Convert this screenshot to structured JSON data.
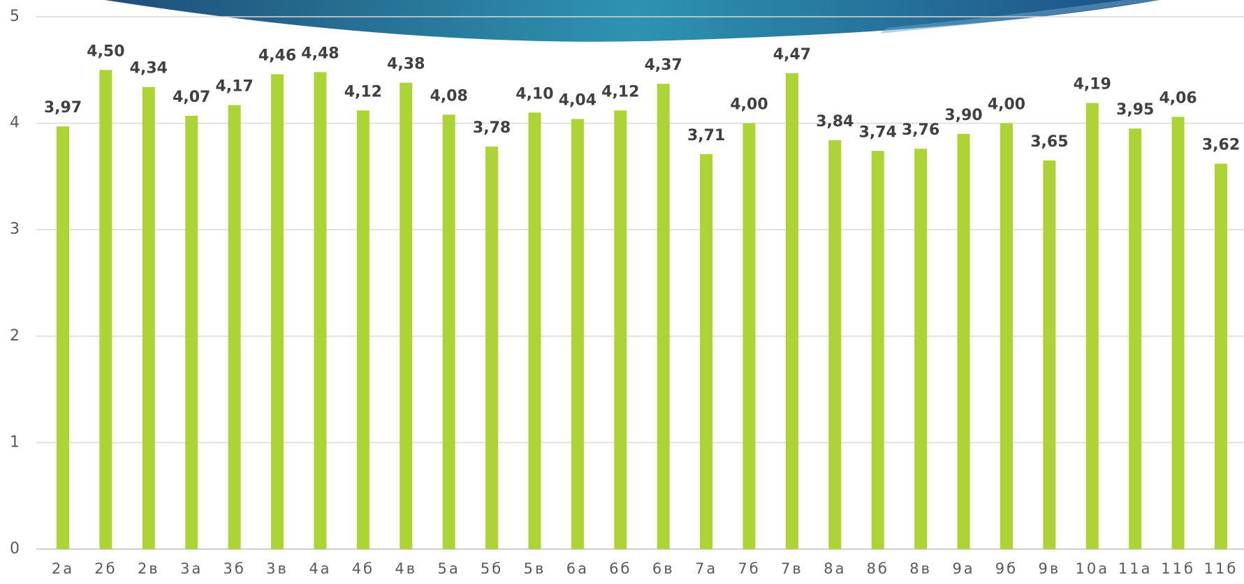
{
  "chart_data": {
    "type": "bar",
    "categories": [
      "2а",
      "2б",
      "2в",
      "3а",
      "3б",
      "3в",
      "4а",
      "4б",
      "4в",
      "5а",
      "5б",
      "5в",
      "6а",
      "6б",
      "6в",
      "7а",
      "7б",
      "7в",
      "8а",
      "8б",
      "8в",
      "9а",
      "9б",
      "9в",
      "10а",
      "11а",
      "11б",
      "11б"
    ],
    "values": [
      3.97,
      4.5,
      4.34,
      4.07,
      4.17,
      4.46,
      4.48,
      4.12,
      4.38,
      4.08,
      3.78,
      4.1,
      4.04,
      4.12,
      4.37,
      3.71,
      4.0,
      4.47,
      3.84,
      3.74,
      3.76,
      3.9,
      4.0,
      3.65,
      4.19,
      3.95,
      4.06,
      3.62
    ],
    "value_labels": [
      "3,97",
      "4,50",
      "4,34",
      "4,07",
      "4,17",
      "4,46",
      "4,48",
      "4,12",
      "4,38",
      "4,08",
      "3,78",
      "4,10",
      "4,04",
      "4,12",
      "4,37",
      "3,71",
      "4,00",
      "4,47",
      "3,84",
      "3,74",
      "3,76",
      "3,90",
      "4,00",
      "3,65",
      "4,19",
      "3,95",
      "4,06",
      "3,62"
    ],
    "color": "#acd434",
    "ylim": [
      0,
      5
    ],
    "yticks": [
      0,
      1,
      2,
      3,
      4,
      5
    ],
    "grid": true
  }
}
